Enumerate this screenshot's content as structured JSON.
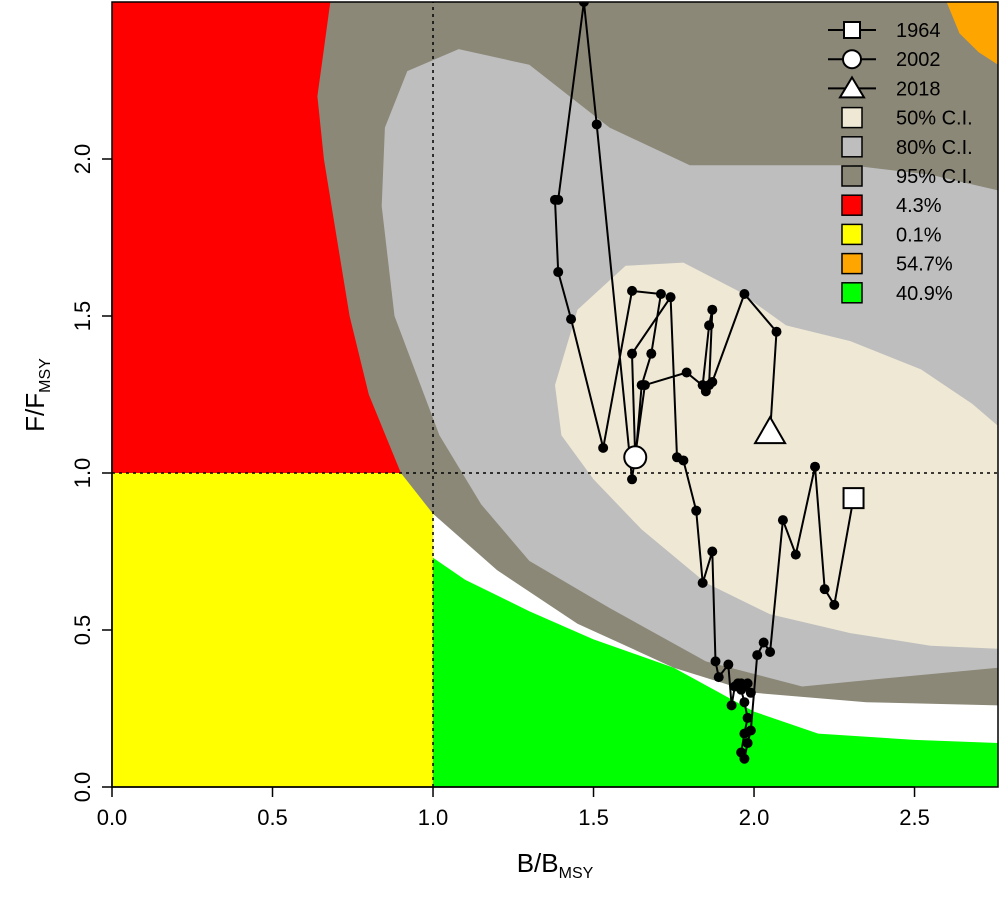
{
  "chart_data": {
    "type": "scatter",
    "subtype": "kobe-plot",
    "xlabel": {
      "main": "B/B",
      "sub": "MSY"
    },
    "ylabel": {
      "main": "F/F",
      "sub": "MSY"
    },
    "xlim": [
      0,
      2.76
    ],
    "ylim": [
      0,
      2.5
    ],
    "x_ticks": [
      0.0,
      0.5,
      1.0,
      1.5,
      2.0,
      2.5
    ],
    "x_tick_labels": [
      "0.0",
      "0.5",
      "1.0",
      "1.5",
      "2.0",
      "2.5"
    ],
    "y_ticks": [
      0.0,
      0.5,
      1.0,
      1.5,
      2.0
    ],
    "y_tick_labels": [
      "0.0",
      "0.5",
      "1.0",
      "1.5",
      "2.0"
    ],
    "reference_lines": {
      "x": 1.0,
      "y": 1.0,
      "style": "dotted"
    },
    "quadrant_colors": {
      "overfished_overfishing": "#ff0000",
      "overfished_not_overfishing": "#ffff00",
      "not_overfished_overfishing": "#ffa500",
      "not_overfished_not_overfishing": "#00ff00"
    },
    "confidence_regions": [
      {
        "label": "95% C.I.",
        "color": "#8b8878",
        "boundary": [
          [
            0.68,
            2.5
          ],
          [
            0.66,
            2.35
          ],
          [
            0.64,
            2.2
          ],
          [
            0.66,
            2.0
          ],
          [
            0.7,
            1.75
          ],
          [
            0.74,
            1.5
          ],
          [
            0.8,
            1.25
          ],
          [
            0.9,
            1.0
          ],
          [
            1.0,
            0.87
          ],
          [
            1.2,
            0.69
          ],
          [
            1.45,
            0.52
          ],
          [
            1.75,
            0.38
          ],
          [
            2.0,
            0.3
          ],
          [
            2.35,
            0.27
          ],
          [
            2.76,
            0.26
          ],
          [
            2.76,
            2.5
          ]
        ]
      },
      {
        "label": "80% C.I.",
        "color": "#bebebe",
        "boundary": [
          [
            0.85,
            2.1
          ],
          [
            0.92,
            2.28
          ],
          [
            1.08,
            2.35
          ],
          [
            1.3,
            2.3
          ],
          [
            1.55,
            2.1
          ],
          [
            1.8,
            1.98
          ],
          [
            2.05,
            1.98
          ],
          [
            2.3,
            1.98
          ],
          [
            2.55,
            1.95
          ],
          [
            2.76,
            1.9
          ],
          [
            2.76,
            0.38
          ],
          [
            2.45,
            0.35
          ],
          [
            2.15,
            0.32
          ],
          [
            1.85,
            0.4
          ],
          [
            1.55,
            0.57
          ],
          [
            1.3,
            0.72
          ],
          [
            1.15,
            0.9
          ],
          [
            1.02,
            1.12
          ],
          [
            0.88,
            1.5
          ],
          [
            0.84,
            1.85
          ]
        ]
      },
      {
        "label": "50% C.I.",
        "color": "#eee8d5",
        "boundary": [
          [
            1.38,
            1.28
          ],
          [
            1.45,
            1.52
          ],
          [
            1.6,
            1.66
          ],
          [
            1.78,
            1.67
          ],
          [
            1.95,
            1.58
          ],
          [
            2.1,
            1.47
          ],
          [
            2.3,
            1.42
          ],
          [
            2.52,
            1.33
          ],
          [
            2.68,
            1.22
          ],
          [
            2.76,
            1.15
          ],
          [
            2.76,
            0.44
          ],
          [
            2.55,
            0.45
          ],
          [
            2.3,
            0.49
          ],
          [
            2.05,
            0.55
          ],
          [
            1.85,
            0.65
          ],
          [
            1.65,
            0.82
          ],
          [
            1.5,
            0.98
          ],
          [
            1.4,
            1.12
          ]
        ]
      }
    ],
    "orange_region": {
      "color": "#ffa500",
      "boundary": [
        [
          2.6,
          2.5
        ],
        [
          2.64,
          2.4
        ],
        [
          2.7,
          2.34
        ],
        [
          2.76,
          2.3
        ],
        [
          2.76,
          2.5
        ]
      ]
    },
    "green_region_upper_edge": [
      [
        1.0,
        0.73
      ],
      [
        1.1,
        0.66
      ],
      [
        1.3,
        0.56
      ],
      [
        1.5,
        0.47
      ],
      [
        1.75,
        0.38
      ],
      [
        2.0,
        0.24
      ],
      [
        2.2,
        0.17
      ],
      [
        2.5,
        0.15
      ],
      [
        2.76,
        0.14
      ]
    ],
    "trajectory": {
      "x": [
        2.31,
        2.25,
        2.22,
        2.19,
        2.13,
        2.09,
        2.05,
        2.03,
        2.01,
        1.99,
        1.98,
        1.97,
        1.96,
        1.97,
        1.98,
        1.97,
        1.96,
        1.95,
        1.97,
        1.99,
        1.98,
        1.96,
        1.94,
        1.93,
        1.92,
        1.89,
        1.88,
        1.87,
        1.84,
        1.82,
        1.78,
        1.76,
        1.74,
        1.62,
        1.63,
        1.65,
        1.68,
        1.71,
        1.62,
        1.53,
        1.43,
        1.39,
        1.38,
        1.39,
        1.47,
        1.51,
        1.62,
        1.66,
        1.79,
        1.85,
        1.84,
        1.86,
        1.87,
        1.86,
        1.85,
        1.87,
        1.97,
        2.07,
        2.05
      ],
      "y": [
        0.92,
        0.58,
        0.63,
        1.02,
        0.74,
        0.85,
        0.43,
        0.46,
        0.42,
        0.18,
        0.14,
        0.09,
        0.11,
        0.17,
        0.22,
        0.27,
        0.31,
        0.33,
        0.32,
        0.3,
        0.33,
        0.33,
        0.32,
        0.26,
        0.39,
        0.35,
        0.4,
        0.75,
        0.65,
        0.88,
        1.04,
        1.05,
        1.56,
        1.38,
        1.04,
        1.28,
        1.38,
        1.57,
        1.58,
        1.08,
        1.49,
        1.64,
        1.87,
        1.87,
        2.5,
        2.11,
        0.98,
        1.28,
        1.32,
        1.27,
        1.28,
        1.47,
        1.52,
        1.28,
        1.26,
        1.29,
        1.57,
        1.45,
        1.13
      ]
    },
    "markers": [
      {
        "year": "1964",
        "shape": "square",
        "x": 2.31,
        "y": 0.92
      },
      {
        "year": "2002",
        "shape": "circle",
        "x": 1.63,
        "y": 1.05
      },
      {
        "year": "2018",
        "shape": "triangle",
        "x": 2.05,
        "y": 1.13
      }
    ],
    "legend": {
      "position": "top-right",
      "entries": [
        {
          "label": "1964",
          "kind": "line-square"
        },
        {
          "label": "2002",
          "kind": "line-circle"
        },
        {
          "label": "2018",
          "kind": "line-triangle"
        },
        {
          "label": "50% C.I.",
          "kind": "box",
          "color": "#eee8d5"
        },
        {
          "label": "80% C.I.",
          "kind": "box",
          "color": "#bebebe"
        },
        {
          "label": "95% C.I.",
          "kind": "box",
          "color": "#8b8878"
        },
        {
          "label": "4.3%",
          "kind": "box",
          "color": "#ff0000"
        },
        {
          "label": "0.1%",
          "kind": "box",
          "color": "#ffff00"
        },
        {
          "label": "54.7%",
          "kind": "box",
          "color": "#ffa500"
        },
        {
          "label": "40.9%",
          "kind": "box",
          "color": "#00ff00"
        }
      ]
    }
  }
}
